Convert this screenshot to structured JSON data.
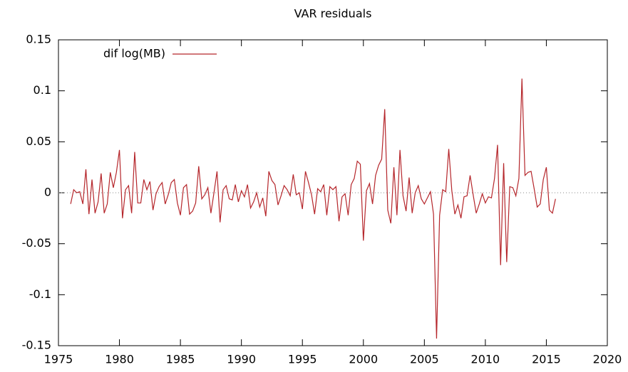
{
  "chart_data": {
    "type": "line",
    "title": "VAR residuals",
    "x": [
      1976,
      1976.25,
      1976.5,
      1976.75,
      1977,
      1977.25,
      1977.5,
      1977.75,
      1978,
      1978.25,
      1978.5,
      1978.75,
      1979,
      1979.25,
      1979.5,
      1979.75,
      1980,
      1980.25,
      1980.5,
      1980.75,
      1981,
      1981.25,
      1981.5,
      1981.75,
      1982,
      1982.25,
      1982.5,
      1982.75,
      1983,
      1983.25,
      1983.5,
      1983.75,
      1984,
      1984.25,
      1984.5,
      1984.75,
      1985,
      1985.25,
      1985.5,
      1985.75,
      1986,
      1986.25,
      1986.5,
      1986.75,
      1987,
      1987.25,
      1987.5,
      1987.75,
      1988,
      1988.25,
      1988.5,
      1988.75,
      1989,
      1989.25,
      1989.5,
      1989.75,
      1990,
      1990.25,
      1990.5,
      1990.75,
      1991,
      1991.25,
      1991.5,
      1991.75,
      1992,
      1992.25,
      1992.5,
      1992.75,
      1993,
      1993.25,
      1993.5,
      1993.75,
      1994,
      1994.25,
      1994.5,
      1994.75,
      1995,
      1995.25,
      1995.5,
      1995.75,
      1996,
      1996.25,
      1996.5,
      1996.75,
      1997,
      1997.25,
      1997.5,
      1997.75,
      1998,
      1998.25,
      1998.5,
      1998.75,
      1999,
      1999.25,
      1999.5,
      1999.75,
      2000,
      2000.25,
      2000.5,
      2000.75,
      2001,
      2001.25,
      2001.5,
      2001.75,
      2002,
      2002.25,
      2002.5,
      2002.75,
      2003,
      2003.25,
      2003.5,
      2003.75,
      2004,
      2004.25,
      2004.5,
      2004.75,
      2005,
      2005.25,
      2005.5,
      2005.75,
      2006,
      2006.25,
      2006.5,
      2006.75,
      2007,
      2007.25,
      2007.5,
      2007.75,
      2008,
      2008.25,
      2008.5,
      2008.75,
      2009,
      2009.25,
      2009.5,
      2009.75,
      2010,
      2010.25,
      2010.5,
      2010.75,
      2011,
      2011.25,
      2011.5,
      2011.75,
      2012,
      2012.25,
      2012.5,
      2012.75,
      2013,
      2013.25,
      2013.5,
      2013.75,
      2014,
      2014.25,
      2014.5,
      2014.75,
      2015,
      2015.25,
      2015.5,
      2015.75
    ],
    "series": [
      {
        "name": "dif log(MB)",
        "color": "#b5262b",
        "values": [
          -0.011,
          0.003,
          0.0,
          0.001,
          -0.011,
          0.023,
          -0.021,
          0.013,
          -0.02,
          -0.009,
          0.019,
          -0.02,
          -0.011,
          0.02,
          0.005,
          0.02,
          0.042,
          -0.025,
          0.003,
          0.007,
          -0.02,
          0.04,
          -0.01,
          -0.01,
          0.013,
          0.003,
          0.011,
          -0.017,
          -0.001,
          0.006,
          0.01,
          -0.011,
          -0.002,
          0.01,
          0.013,
          -0.01,
          -0.022,
          0.005,
          0.008,
          -0.021,
          -0.018,
          -0.01,
          0.026,
          -0.006,
          -0.002,
          0.005,
          -0.02,
          0.0,
          0.021,
          -0.029,
          0.003,
          0.007,
          -0.006,
          -0.007,
          0.008,
          -0.009,
          0.002,
          -0.004,
          0.008,
          -0.015,
          -0.009,
          0.0,
          -0.014,
          -0.005,
          -0.023,
          0.021,
          0.012,
          0.008,
          -0.012,
          -0.003,
          0.007,
          0.003,
          -0.003,
          0.018,
          -0.002,
          0.0,
          -0.016,
          0.021,
          0.01,
          -0.002,
          -0.021,
          0.004,
          0.001,
          0.008,
          -0.022,
          0.006,
          0.003,
          0.006,
          -0.028,
          -0.004,
          -0.001,
          -0.022,
          0.008,
          0.014,
          0.031,
          0.028,
          -0.047,
          0.002,
          0.009,
          -0.011,
          0.017,
          0.027,
          0.033,
          0.082,
          -0.017,
          -0.03,
          0.025,
          -0.022,
          0.042,
          -0.003,
          -0.018,
          0.015,
          -0.02,
          0.0,
          0.007,
          -0.006,
          -0.011,
          -0.005,
          0.001,
          -0.021,
          -0.143,
          -0.022,
          0.003,
          0.001,
          0.043,
          0.002,
          -0.021,
          -0.012,
          -0.025,
          -0.004,
          -0.003,
          0.017,
          -0.002,
          -0.02,
          -0.011,
          -0.001,
          -0.01,
          -0.004,
          -0.005,
          0.014,
          0.047,
          -0.071,
          0.029,
          -0.068,
          0.006,
          0.005,
          -0.003,
          0.014,
          0.112,
          0.017,
          0.02,
          0.021,
          0.004,
          -0.014,
          -0.011,
          0.013,
          0.025,
          -0.017,
          -0.02,
          -0.006
        ]
      }
    ],
    "xlim": [
      1975,
      2020
    ],
    "xticks": [
      1975,
      1980,
      1985,
      1990,
      1995,
      2000,
      2005,
      2010,
      2015,
      2020
    ],
    "ylim": [
      -0.15,
      0.15
    ],
    "yticks": [
      -0.15,
      -0.1,
      -0.05,
      0,
      0.05,
      0.1,
      0.15
    ],
    "zero_line": true,
    "legend": "top-left"
  }
}
